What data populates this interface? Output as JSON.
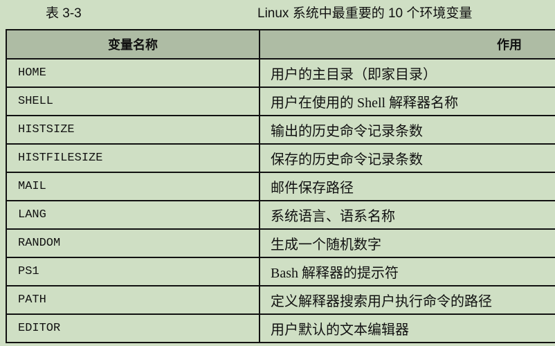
{
  "caption": {
    "number": "表 3-3",
    "title": "Linux 系统中最重要的 10 个环境变量"
  },
  "table": {
    "headers": [
      "变量名称",
      "作用"
    ],
    "rows": [
      [
        "HOME",
        "用户的主目录（即家目录）"
      ],
      [
        "SHELL",
        "用户在使用的 Shell 解释器名称"
      ],
      [
        "HISTSIZE",
        "输出的历史命令记录条数"
      ],
      [
        "HISTFILESIZE",
        "保存的历史命令记录条数"
      ],
      [
        "MAIL",
        "邮件保存路径"
      ],
      [
        "LANG",
        "系统语言、语系名称"
      ],
      [
        "RANDOM",
        "生成一个随机数字"
      ],
      [
        "PS1",
        "Bash 解释器的提示符"
      ],
      [
        "PATH",
        "定义解释器搜索用户执行命令的路径"
      ],
      [
        "EDITOR",
        "用户默认的文本编辑器"
      ]
    ]
  },
  "colors": {
    "background": "#cfdfc4",
    "header": "#aebca4",
    "border": "#111111"
  }
}
